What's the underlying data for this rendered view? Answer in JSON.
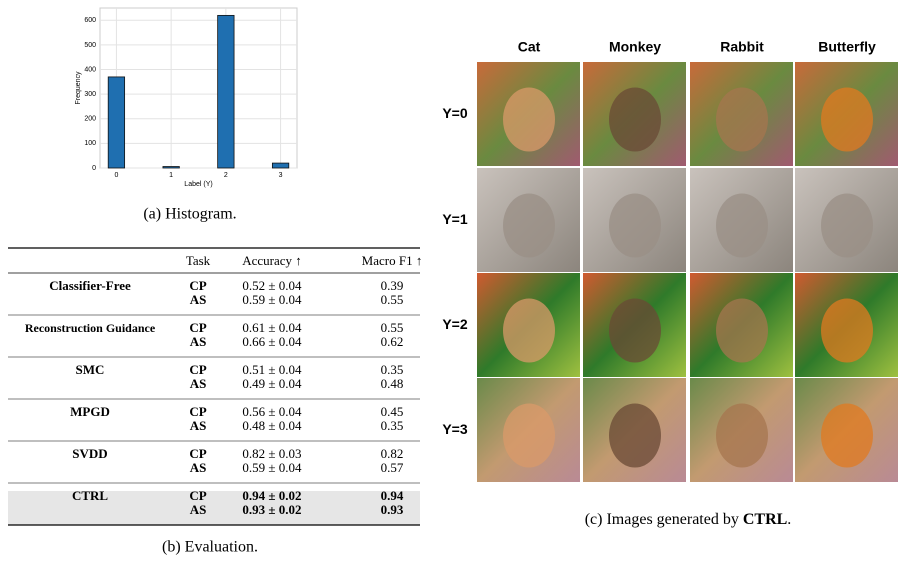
{
  "chart_data": {
    "type": "bar",
    "x_label": "Label (Y)",
    "y_label": "Frequency",
    "x": [
      0,
      1,
      2,
      3
    ],
    "values": [
      370,
      6,
      620,
      20
    ],
    "color": "#1f6fb0",
    "xlim": [
      -0.3,
      3.3
    ],
    "xticks": [
      0,
      1,
      2,
      3
    ],
    "ylim": [
      0,
      650
    ],
    "yticks": [
      0,
      100,
      200,
      300,
      400,
      500,
      600
    ],
    "grid": true
  },
  "caption_a": "(a) Histogram.",
  "table": {
    "header": [
      "Task",
      "Accuracy ↑",
      "Macro F1 ↑"
    ],
    "groups": [
      {
        "method": "Classifier-Free",
        "rows": [
          [
            "CP",
            "0.52 ± 0.04",
            "0.39"
          ],
          [
            "AS",
            "0.59 ± 0.04",
            "0.55"
          ]
        ]
      },
      {
        "method": "Reconstruction Guidance",
        "rows": [
          [
            "CP",
            "0.61 ± 0.04",
            "0.55"
          ],
          [
            "AS",
            "0.66 ± 0.04",
            "0.62"
          ]
        ]
      },
      {
        "method": "SMC",
        "rows": [
          [
            "CP",
            "0.51 ± 0.04",
            "0.35"
          ],
          [
            "AS",
            "0.49 ± 0.04",
            "0.48"
          ]
        ]
      },
      {
        "method": "MPGD",
        "rows": [
          [
            "CP",
            "0.56 ± 0.04",
            "0.45"
          ],
          [
            "AS",
            "0.48 ± 0.04",
            "0.35"
          ]
        ]
      },
      {
        "method": "SVDD",
        "rows": [
          [
            "CP",
            "0.82 ± 0.03",
            "0.82"
          ],
          [
            "AS",
            "0.59 ± 0.04",
            "0.57"
          ]
        ]
      },
      {
        "method": "CTRL",
        "highlight": true,
        "rows": [
          [
            "CP",
            "0.94 ± 0.02",
            "0.94"
          ],
          [
            "AS",
            "0.93 ± 0.02",
            "0.93"
          ]
        ]
      }
    ]
  },
  "caption_b": "(b) Evaluation.",
  "grid": {
    "columns": [
      "Cat",
      "Monkey",
      "Rabbit",
      "Butterfly"
    ],
    "rows": [
      "Y=0",
      "Y=1",
      "Y=2",
      "Y=3"
    ]
  },
  "caption_c": {
    "text": "(c) Images generated by",
    "bold": "CTRL",
    "end": "."
  }
}
